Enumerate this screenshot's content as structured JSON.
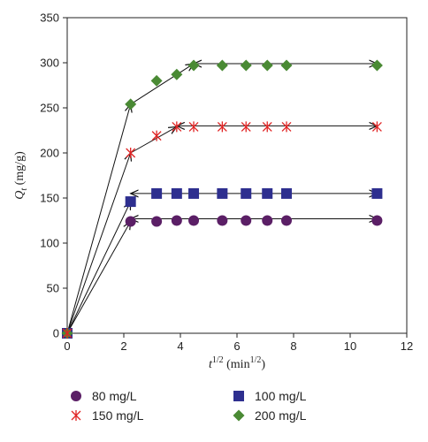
{
  "chart_data": {
    "type": "scatter",
    "xlabel": {
      "main": "t",
      "sup": "1/2",
      "unit_main": " (min",
      "unit_sup": "1/2",
      "unit_close": ")"
    },
    "ylabel": {
      "main": "Q",
      "sub": "t",
      "unit": " (mg/g)"
    },
    "xlim": [
      0,
      12
    ],
    "ylim": [
      0,
      350
    ],
    "xticks": [
      "0",
      "2",
      "4",
      "6",
      "8",
      "10",
      "12"
    ],
    "yticks": [
      "0",
      "50",
      "100",
      "150",
      "200",
      "250",
      "300",
      "350"
    ],
    "grid": false,
    "legend_position": "bottom",
    "series": [
      {
        "name": "80 mg/L",
        "marker": "circle",
        "color": "#5b1f66",
        "x": [
          0,
          2.24,
          3.16,
          3.87,
          4.47,
          5.48,
          6.32,
          7.07,
          7.75,
          10.95
        ],
        "y": [
          0,
          124,
          124,
          125,
          125,
          125,
          125,
          125,
          125,
          125
        ],
        "guides": [
          {
            "from": [
              0,
              0
            ],
            "to": [
              2.24,
              124
            ]
          },
          {
            "from": [
              2.24,
              127
            ],
            "to": [
              10.95,
              127
            ],
            "double_headed": true
          }
        ]
      },
      {
        "name": "100 mg/L",
        "marker": "square",
        "color": "#2e2f8f",
        "x": [
          0,
          2.24,
          3.16,
          3.87,
          4.47,
          5.48,
          6.32,
          7.07,
          7.75,
          10.95
        ],
        "y": [
          0,
          146,
          155,
          155,
          155,
          155,
          155,
          155,
          155,
          155
        ],
        "guides": [
          {
            "from": [
              0,
              0
            ],
            "to": [
              2.24,
              146
            ]
          },
          {
            "from": [
              2.24,
              155
            ],
            "to": [
              10.95,
              155
            ],
            "double_headed": true
          }
        ]
      },
      {
        "name": "150 mg/L",
        "marker": "star",
        "color": "#e02424",
        "x": [
          0,
          2.24,
          3.16,
          3.87,
          4.47,
          5.48,
          6.32,
          7.07,
          7.75,
          10.95
        ],
        "y": [
          0,
          200,
          219,
          229,
          229,
          229,
          229,
          229,
          229,
          229
        ],
        "guides": [
          {
            "from": [
              0,
              0
            ],
            "to": [
              2.24,
              200
            ]
          },
          {
            "from": [
              2.24,
              200
            ],
            "to": [
              3.87,
              229
            ]
          },
          {
            "from": [
              3.87,
              230
            ],
            "to": [
              10.95,
              230
            ],
            "double_headed": true
          }
        ]
      },
      {
        "name": "200 mg/L",
        "marker": "diamond",
        "color": "#4a8a34",
        "x": [
          0,
          2.24,
          3.16,
          3.87,
          4.47,
          5.48,
          6.32,
          7.07,
          7.75,
          10.95
        ],
        "y": [
          0,
          254,
          280,
          287,
          297,
          297,
          297,
          297,
          297,
          297
        ],
        "guides": [
          {
            "from": [
              0,
              0
            ],
            "to": [
              2.24,
              254
            ]
          },
          {
            "from": [
              2.24,
              254
            ],
            "to": [
              4.47,
              299
            ]
          },
          {
            "from": [
              4.47,
              299
            ],
            "to": [
              10.95,
              299
            ],
            "double_headed": true
          }
        ]
      }
    ]
  }
}
